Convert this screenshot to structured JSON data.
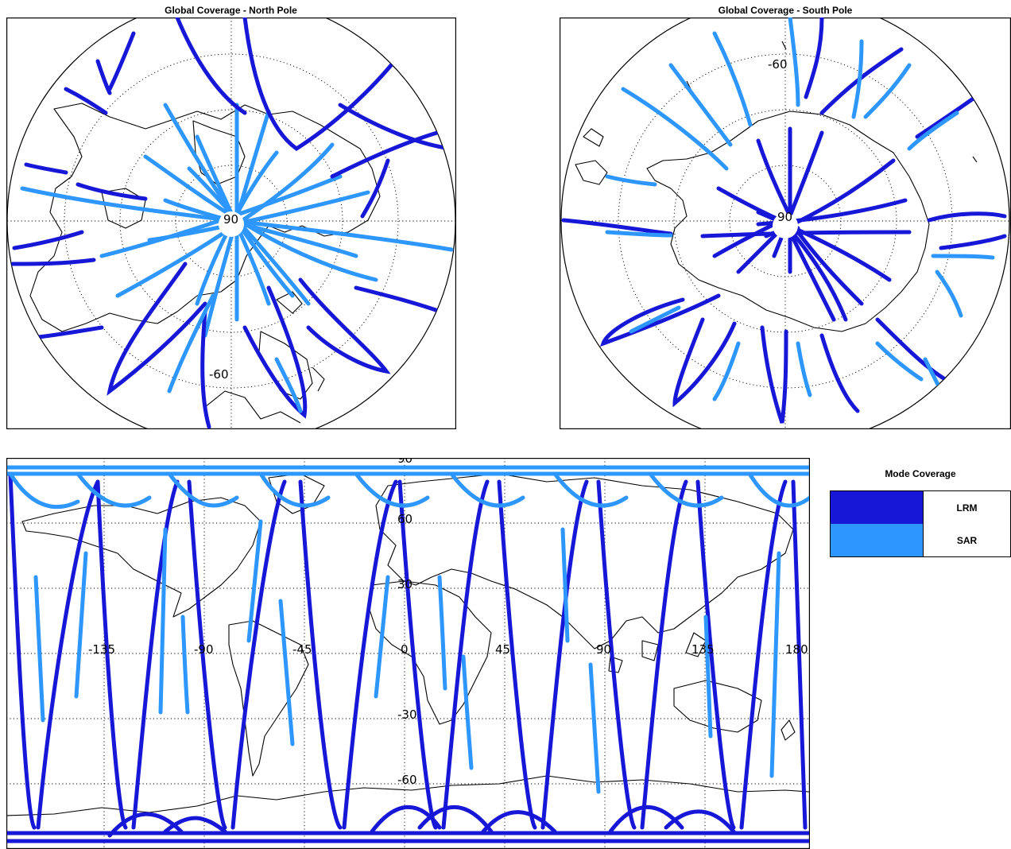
{
  "panels": {
    "north": {
      "title": "Global Coverage - North Pole",
      "lat_label": "-60",
      "center_label": "90"
    },
    "south": {
      "title": "Global Coverage - South Pole",
      "lat_label": "-60",
      "center_label": "90"
    },
    "global": {
      "top_label": "90",
      "lon_labels": [
        "-135",
        "-90",
        "-45",
        "0",
        "45",
        "90",
        "135",
        "180"
      ],
      "lat_labels": [
        "60",
        "30",
        "-30",
        "-60"
      ]
    }
  },
  "legend": {
    "title": "Mode Coverage",
    "items": [
      {
        "label": "LRM",
        "color": "#1717d8"
      },
      {
        "label": "SAR",
        "color": "#2d96ff"
      }
    ]
  },
  "colors": {
    "lrm": "#1717d8",
    "sar": "#2d96ff"
  }
}
